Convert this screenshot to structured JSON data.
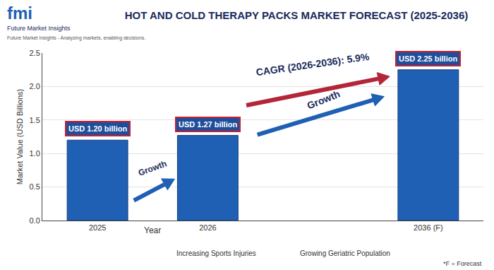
{
  "chart_data": {
    "type": "bar",
    "title": "HOT AND COLD THERAPY PACKS MARKET FORECAST (2025-2036)",
    "x_label": "Year",
    "y_label": "Market Value (USD Billions)",
    "categories": [
      "2025",
      "2026",
      null,
      "2036 (F)"
    ],
    "values": [
      1.2,
      1.27,
      null,
      2.25
    ],
    "value_labels": [
      "USD 1.20 billion",
      "USD 1.27 billion",
      null,
      "USD 2.25 billion"
    ],
    "data_labels": true,
    "color": "#1f5fb4",
    "ylim": [
      0,
      2.5
    ],
    "yticks": [
      {
        "value": 0,
        "label": "0.0"
      },
      0.5,
      {
        "value": 1,
        "label": "1.0"
      },
      1.5,
      {
        "value": 2,
        "label": "2.0"
      },
      2.5
    ],
    "grid": true,
    "annotations": [
      {
        "text": "CAGR (2026-2036): 5.9%"
      },
      {
        "text": "Growth"
      },
      {
        "text": "Growth"
      }
    ],
    "notes": [
      "Increasing Sports Injuries",
      "Growing Geriatric Population"
    ],
    "footnote": "*F = Forecast",
    "branding": {
      "logo": "fmi",
      "name": "Future Market Insights",
      "tagline": "Future Market Insights - Analyzing markets, enabling decisions."
    }
  }
}
